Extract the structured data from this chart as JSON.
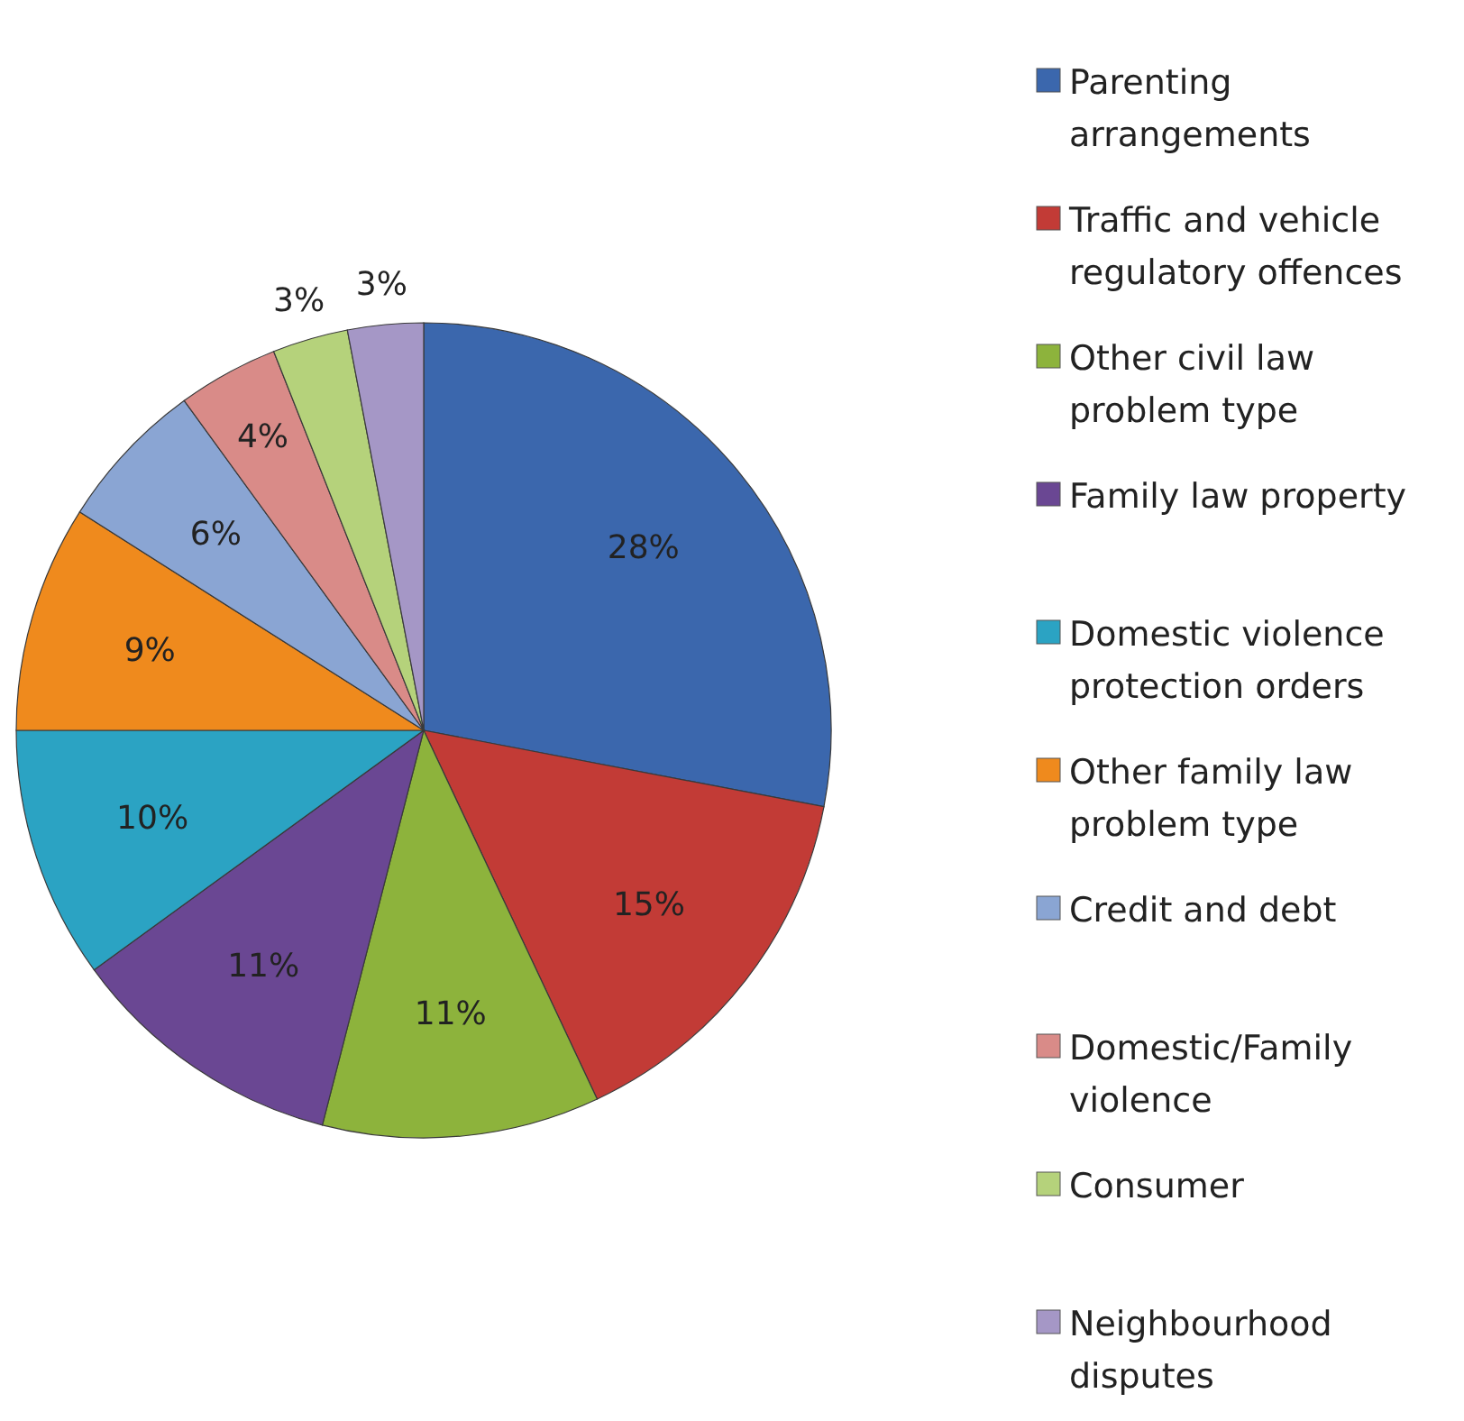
{
  "chart_data": {
    "type": "pie",
    "categories": [
      "Parenting arrangements",
      "Traffic and vehicle regulatory offences",
      "Other civil law problem type",
      "Family law property",
      "Domestic violence protection orders",
      "Other family law problem type",
      "Credit and debt",
      "Domestic/Family violence",
      "Consumer",
      "Neighbourhood disputes"
    ],
    "values": [
      28,
      15,
      11,
      11,
      10,
      9,
      6,
      4,
      3,
      3
    ],
    "value_labels": [
      "28%",
      "15%",
      "11%",
      "11%",
      "10%",
      "9%",
      "6%",
      "4%",
      "3%",
      "3%"
    ],
    "colors": [
      "#3b67ad",
      "#c23b36",
      "#8db33c",
      "#6a4793",
      "#2ba3c3",
      "#ef8a1d",
      "#8aa5d3",
      "#d98b88",
      "#b5d27b",
      "#a597c6"
    ],
    "legend": "right"
  }
}
